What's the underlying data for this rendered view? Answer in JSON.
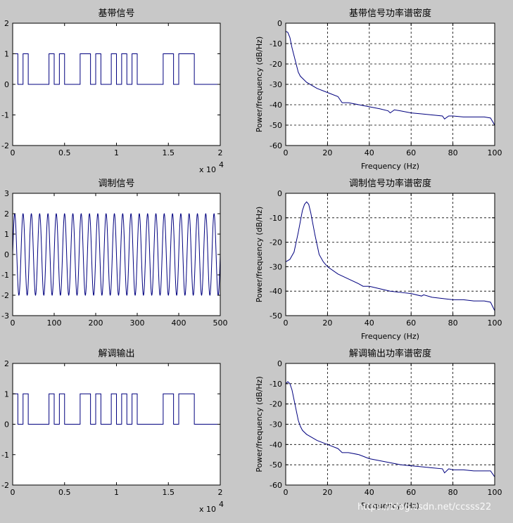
{
  "watermark": "https://blog.csdn.net/ccsss22",
  "colors": {
    "background": "#c8c8c8",
    "axes": "#ffffff",
    "line": "#00007f",
    "grid": "#000000"
  },
  "charts": [
    {
      "type": "line",
      "title": "基带信号",
      "xlabel": "",
      "ylabel": "",
      "xlim": [
        0,
        20000
      ],
      "ylim": [
        -2,
        2
      ],
      "xticks": [
        0,
        5000,
        10000,
        15000,
        20000
      ],
      "xtick_labels": [
        "0",
        "0.5",
        "1",
        "1.5",
        "2"
      ],
      "yticks": [
        -2,
        -1,
        0,
        1,
        2
      ],
      "ytick_labels": [
        "-2",
        "-1",
        "0",
        "1",
        "2"
      ],
      "x_multiplier": "x 10",
      "x_multiplier_exp": "4",
      "grid": false,
      "signal": "baseband",
      "bits": [
        1,
        0,
        1,
        0,
        0,
        0,
        0,
        1,
        0,
        1,
        0,
        0,
        0,
        1,
        1,
        0,
        1,
        0,
        0,
        1,
        0,
        1,
        0,
        1,
        0,
        0,
        0,
        0,
        0,
        1,
        1,
        0,
        1,
        1,
        1,
        0,
        0,
        0,
        0,
        0
      ]
    },
    {
      "type": "line",
      "title": "基带信号功率谱密度",
      "xlabel": "Frequency (Hz)",
      "ylabel": "Power/frequency (dB/Hz)",
      "xlim": [
        0,
        100
      ],
      "ylim": [
        -60,
        0
      ],
      "xticks": [
        0,
        20,
        40,
        60,
        80,
        100
      ],
      "xtick_labels": [
        "0",
        "20",
        "40",
        "60",
        "80",
        "100"
      ],
      "yticks": [
        -60,
        -50,
        -40,
        -30,
        -20,
        -10,
        0
      ],
      "ytick_labels": [
        "-60",
        "-50",
        "-40",
        "-30",
        "-20",
        "-10",
        "0"
      ],
      "grid": true,
      "signal": "psd",
      "points": [
        [
          0,
          -4
        ],
        [
          1,
          -4.5
        ],
        [
          2,
          -7
        ],
        [
          3,
          -12
        ],
        [
          4,
          -16
        ],
        [
          5,
          -20
        ],
        [
          6,
          -24
        ],
        [
          7,
          -26
        ],
        [
          10,
          -29
        ],
        [
          15,
          -32
        ],
        [
          20,
          -34
        ],
        [
          25,
          -36
        ],
        [
          27,
          -39
        ],
        [
          30,
          -39
        ],
        [
          35,
          -40
        ],
        [
          40,
          -41
        ],
        [
          45,
          -42
        ],
        [
          49,
          -43
        ],
        [
          50,
          -44
        ],
        [
          52,
          -42.5
        ],
        [
          55,
          -43
        ],
        [
          60,
          -44
        ],
        [
          65,
          -44.5
        ],
        [
          70,
          -45
        ],
        [
          75,
          -45.5
        ],
        [
          76,
          -47
        ],
        [
          78,
          -45.5
        ],
        [
          80,
          -45.5
        ],
        [
          85,
          -46
        ],
        [
          90,
          -46
        ],
        [
          95,
          -46
        ],
        [
          98,
          -46.5
        ],
        [
          100,
          -50
        ]
      ]
    },
    {
      "type": "line",
      "title": "调制信号",
      "xlabel": "",
      "ylabel": "",
      "xlim": [
        0,
        500
      ],
      "ylim": [
        -3,
        3
      ],
      "xticks": [
        0,
        100,
        200,
        300,
        400,
        500
      ],
      "xtick_labels": [
        "0",
        "100",
        "200",
        "300",
        "400",
        "500"
      ],
      "yticks": [
        -3,
        -2,
        -1,
        0,
        1,
        2,
        3
      ],
      "ytick_labels": [
        "-3",
        "-2",
        "-1",
        "0",
        "1",
        "2",
        "3"
      ],
      "grid": false,
      "signal": "modulated",
      "cycles": 25,
      "amplitude": 2
    },
    {
      "type": "line",
      "title": "调制信号功率谱密度",
      "xlabel": "Frequency (Hz)",
      "ylabel": "Power/frequency (dB/Hz)",
      "xlim": [
        0,
        100
      ],
      "ylim": [
        -50,
        0
      ],
      "xticks": [
        0,
        20,
        40,
        60,
        80,
        100
      ],
      "xtick_labels": [
        "0",
        "20",
        "40",
        "60",
        "80",
        "100"
      ],
      "yticks": [
        -50,
        -40,
        -30,
        -20,
        -10,
        0
      ],
      "ytick_labels": [
        "-50",
        "-40",
        "-30",
        "-20",
        "-10",
        "0"
      ],
      "grid": true,
      "signal": "psd",
      "points": [
        [
          0,
          -28
        ],
        [
          2,
          -27
        ],
        [
          4,
          -24
        ],
        [
          6,
          -16
        ],
        [
          8,
          -7
        ],
        [
          9,
          -4.5
        ],
        [
          10,
          -3.5
        ],
        [
          11,
          -4.5
        ],
        [
          12,
          -8
        ],
        [
          14,
          -17
        ],
        [
          16,
          -25
        ],
        [
          18,
          -28
        ],
        [
          20,
          -30
        ],
        [
          25,
          -33
        ],
        [
          30,
          -35
        ],
        [
          35,
          -37
        ],
        [
          37,
          -38
        ],
        [
          40,
          -38
        ],
        [
          45,
          -39
        ],
        [
          50,
          -40
        ],
        [
          55,
          -40.5
        ],
        [
          60,
          -41
        ],
        [
          65,
          -42
        ],
        [
          66,
          -41.5
        ],
        [
          70,
          -42.5
        ],
        [
          75,
          -43
        ],
        [
          80,
          -43.5
        ],
        [
          85,
          -43.5
        ],
        [
          90,
          -44
        ],
        [
          95,
          -44
        ],
        [
          98,
          -44.5
        ],
        [
          100,
          -48
        ]
      ]
    },
    {
      "type": "line",
      "title": "解调输出",
      "xlabel": "",
      "ylabel": "",
      "xlim": [
        0,
        20000
      ],
      "ylim": [
        -2,
        2
      ],
      "xticks": [
        0,
        5000,
        10000,
        15000,
        20000
      ],
      "xtick_labels": [
        "0",
        "0.5",
        "1",
        "1.5",
        "2"
      ],
      "yticks": [
        -2,
        -1,
        0,
        1,
        2
      ],
      "ytick_labels": [
        "-2",
        "-1",
        "0",
        "1",
        "2"
      ],
      "x_multiplier": "x 10",
      "x_multiplier_exp": "4",
      "grid": false,
      "signal": "baseband",
      "bits": [
        1,
        0,
        1,
        0,
        0,
        0,
        0,
        1,
        0,
        1,
        0,
        0,
        0,
        1,
        1,
        0,
        1,
        0,
        0,
        1,
        0,
        1,
        0,
        1,
        0,
        0,
        0,
        0,
        0,
        1,
        1,
        0,
        1,
        1,
        1,
        0,
        0,
        0,
        0,
        0
      ]
    },
    {
      "type": "line",
      "title": "解调输出功率谱密度",
      "xlabel": "Frequency (Hz)",
      "ylabel": "Power/frequency (dB/Hz)",
      "xlim": [
        0,
        100
      ],
      "ylim": [
        -60,
        0
      ],
      "xticks": [
        0,
        20,
        40,
        60,
        80,
        100
      ],
      "xtick_labels": [
        "0",
        "20",
        "40",
        "60",
        "80",
        "100"
      ],
      "yticks": [
        -60,
        -50,
        -40,
        -30,
        -20,
        -10,
        0
      ],
      "ytick_labels": [
        "-60",
        "-50",
        "-40",
        "-30",
        "-20",
        "-10",
        "0"
      ],
      "grid": true,
      "signal": "psd",
      "points": [
        [
          0,
          -10
        ],
        [
          1,
          -9
        ],
        [
          2,
          -10
        ],
        [
          3,
          -13
        ],
        [
          4,
          -18
        ],
        [
          5,
          -23
        ],
        [
          6,
          -28
        ],
        [
          7,
          -31
        ],
        [
          8,
          -33
        ],
        [
          10,
          -35
        ],
        [
          15,
          -38
        ],
        [
          20,
          -40
        ],
        [
          25,
          -42
        ],
        [
          27,
          -44
        ],
        [
          30,
          -44
        ],
        [
          35,
          -45
        ],
        [
          40,
          -47
        ],
        [
          45,
          -48
        ],
        [
          50,
          -49
        ],
        [
          55,
          -50
        ],
        [
          60,
          -50.5
        ],
        [
          65,
          -51
        ],
        [
          70,
          -51.5
        ],
        [
          75,
          -52
        ],
        [
          76,
          -54
        ],
        [
          78,
          -52
        ],
        [
          80,
          -52.5
        ],
        [
          85,
          -52.5
        ],
        [
          90,
          -53
        ],
        [
          95,
          -53
        ],
        [
          98,
          -53
        ],
        [
          100,
          -56
        ]
      ]
    }
  ]
}
